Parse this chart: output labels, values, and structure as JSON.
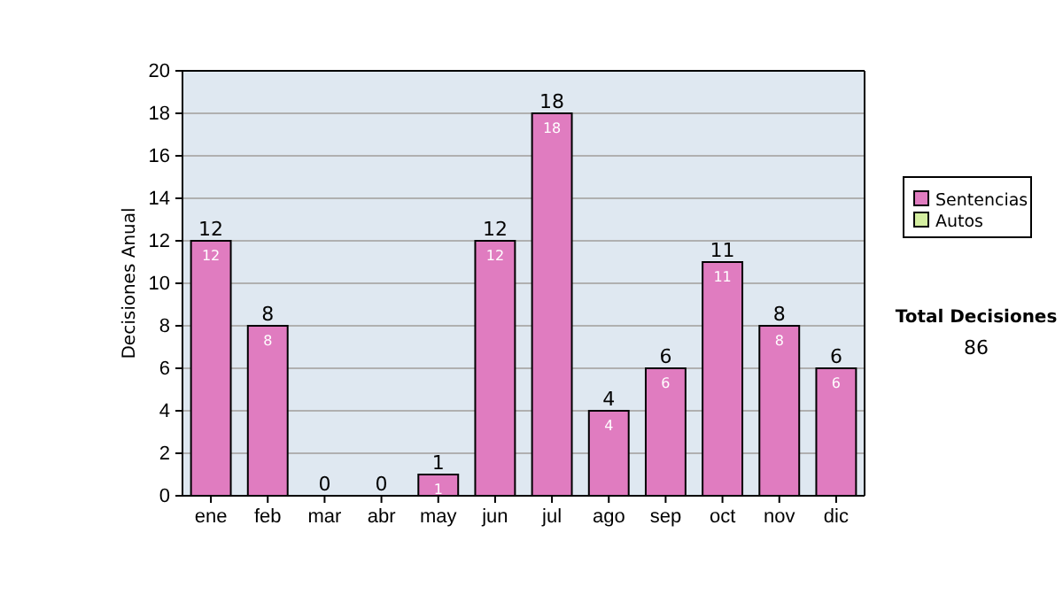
{
  "chart_data": [
    {
      "type": "bar",
      "ylabel": "Decisiones Anual",
      "categories": [
        "ene",
        "feb",
        "mar",
        "abr",
        "may",
        "jun",
        "jul",
        "ago",
        "sep",
        "oct",
        "nov",
        "dic"
      ],
      "series": [
        {
          "name": "Sentencias",
          "color": "#e07cc0",
          "values": [
            12,
            8,
            0,
            0,
            1,
            12,
            18,
            4,
            6,
            11,
            8,
            6
          ],
          "value_labels": [
            "12",
            "8",
            null,
            null,
            "1",
            "12",
            "18",
            "4",
            "6",
            "11",
            "8",
            "6"
          ]
        },
        {
          "name": "Autos",
          "color": "#d4eea0",
          "values": [
            0,
            0,
            0,
            0,
            0,
            0,
            0,
            0,
            0,
            0,
            0,
            0
          ]
        }
      ],
      "stacked": true,
      "totals": [
        "12",
        "8",
        "0",
        "0",
        "1",
        "12",
        "18",
        "4",
        "6",
        "11",
        "8",
        "6"
      ],
      "ylim": [
        0,
        20
      ],
      "yticks": [
        0,
        2,
        4,
        6,
        8,
        10,
        12,
        14,
        16,
        18,
        20
      ],
      "grid": "y",
      "legend": "right"
    },
    {
      "type": "other",
      "title": "Total Decisiones",
      "annotations": [
        "86"
      ]
    }
  ]
}
